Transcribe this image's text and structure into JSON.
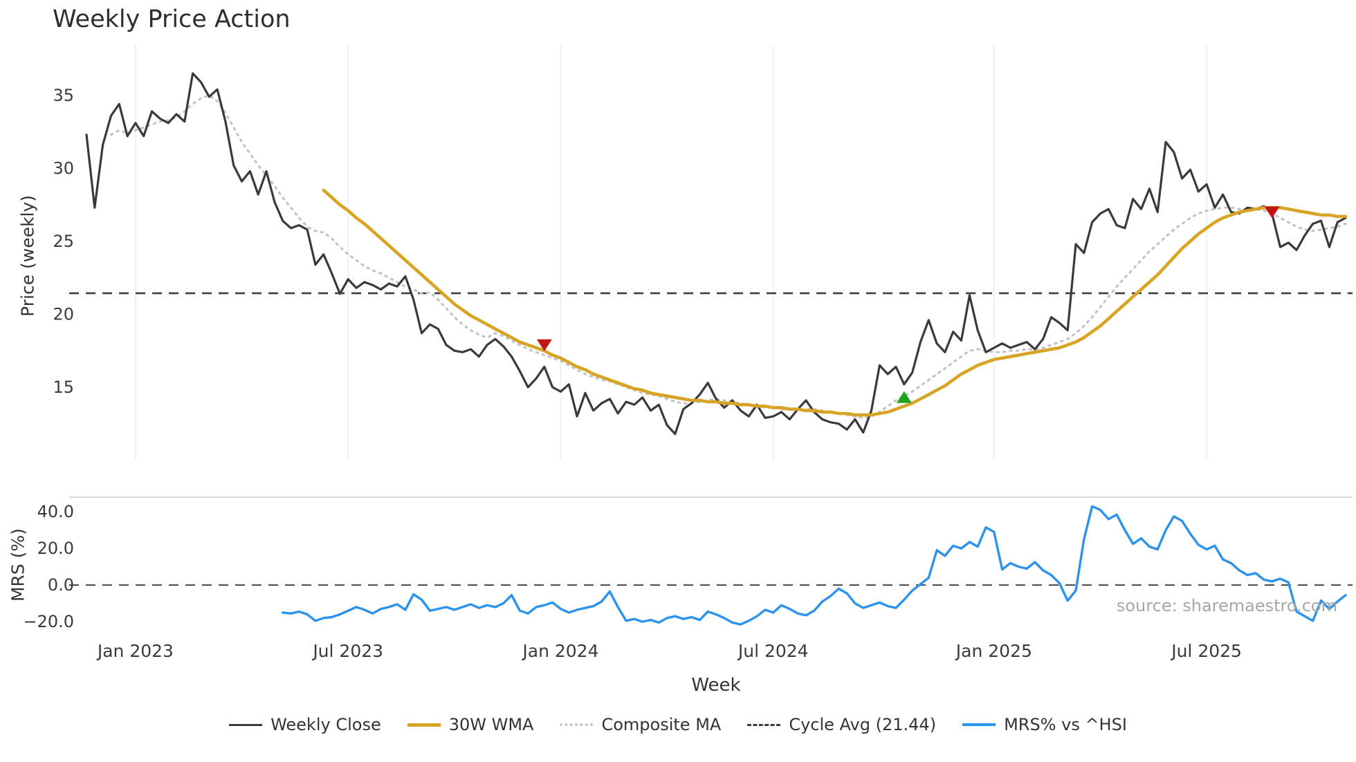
{
  "title": "Weekly Price Action",
  "source": "source: sharemaestro.com",
  "axes": {
    "price_label": "Price (weekly)",
    "mrs_label": "MRS (%)",
    "x_label": "Week"
  },
  "legend": [
    {
      "label": "Weekly Close",
      "color": "#3a3a3a",
      "style": "solid"
    },
    {
      "label": "30W WMA",
      "color": "#d8a425",
      "style": "solid"
    },
    {
      "label": "Composite MA",
      "color": "#c4c4c4",
      "style": "dotted"
    },
    {
      "label": "Cycle Avg (21.44)",
      "color": "#3c3c3c",
      "style": "dashed"
    },
    {
      "label": "MRS% vs ^HSI",
      "color": "#2b93ee",
      "style": "solid"
    }
  ],
  "chart_data": [
    {
      "name": "price-panel",
      "type": "line",
      "ylabel": "Price (weekly)",
      "x_unit": "week-index",
      "n_points": 155,
      "ylim": [
        10.5,
        37.5
      ],
      "yticks": {
        "values": [
          35,
          30,
          25,
          20,
          15
        ],
        "labels": [
          "35",
          "30",
          "25",
          "20",
          "15"
        ]
      },
      "xticks": {
        "indices": [
          6,
          32,
          58,
          84,
          111,
          137
        ],
        "labels": [
          "Jan 2023",
          "Jul 2023",
          "Jan 2024",
          "Jul 2024",
          "Jan 2025",
          "Jul 2025"
        ]
      },
      "cycle_avg": 21.44,
      "grid": "vertical-light",
      "series": [
        {
          "name": "Weekly Close",
          "color": "#3a3a3a",
          "style": "solid",
          "start_index": 0,
          "values": [
            32.3,
            27.3,
            31.6,
            33.6,
            34.4,
            32.2,
            33.1,
            32.2,
            33.9,
            33.4,
            33.1,
            33.7,
            33.2,
            36.5,
            35.9,
            34.9,
            35.4,
            33.2,
            30.2,
            29.1,
            29.8,
            28.2,
            29.8,
            27.7,
            26.4,
            25.9,
            26.1,
            25.8,
            23.4,
            24.1,
            22.8,
            21.4,
            22.4,
            21.8,
            22.2,
            22.0,
            21.7,
            22.1,
            21.9,
            22.6,
            21.0,
            18.7,
            19.3,
            19.0,
            17.9,
            17.5,
            17.4,
            17.6,
            17.1,
            17.9,
            18.3,
            17.8,
            17.1,
            16.1,
            15.0,
            15.6,
            16.4,
            15.0,
            14.7,
            15.2,
            13.0,
            14.6,
            13.4,
            13.9,
            14.2,
            13.2,
            14.0,
            13.8,
            14.3,
            13.4,
            13.8,
            12.4,
            11.8,
            13.5,
            13.9,
            14.5,
            15.3,
            14.2,
            13.6,
            14.1,
            13.4,
            13.0,
            13.8,
            12.9,
            13.0,
            13.3,
            12.8,
            13.5,
            14.1,
            13.3,
            12.8,
            12.6,
            12.5,
            12.1,
            12.8,
            11.9,
            13.4,
            16.5,
            15.9,
            16.4,
            15.2,
            16.0,
            18.1,
            19.6,
            18.0,
            17.4,
            18.8,
            18.2,
            21.3,
            18.9,
            17.4,
            17.7,
            18.0,
            17.7,
            17.9,
            18.1,
            17.6,
            18.3,
            19.8,
            19.4,
            18.9,
            24.8,
            24.2,
            26.3,
            26.9,
            27.2,
            26.1,
            25.9,
            27.9,
            27.2,
            28.6,
            27.0,
            31.8,
            31.1,
            29.3,
            29.9,
            28.4,
            28.9,
            27.3,
            28.2,
            27.0,
            26.9,
            27.3,
            27.2,
            27.4,
            26.9,
            24.6,
            24.9,
            24.4,
            25.4,
            26.2,
            26.4,
            24.6,
            26.3,
            26.6
          ]
        },
        {
          "name": "30W WMA",
          "color": "#d8a425",
          "style": "solid",
          "start_index": 29,
          "values": [
            28.5,
            28.0,
            27.5,
            27.1,
            26.6,
            26.2,
            25.7,
            25.2,
            24.7,
            24.2,
            23.7,
            23.2,
            22.7,
            22.2,
            21.7,
            21.2,
            20.7,
            20.3,
            19.9,
            19.6,
            19.3,
            19.0,
            18.7,
            18.4,
            18.1,
            17.9,
            17.7,
            17.5,
            17.2,
            17.0,
            16.7,
            16.4,
            16.2,
            15.9,
            15.7,
            15.5,
            15.3,
            15.1,
            14.9,
            14.8,
            14.6,
            14.5,
            14.4,
            14.3,
            14.2,
            14.1,
            14.1,
            14.0,
            14.0,
            13.9,
            13.9,
            13.8,
            13.8,
            13.7,
            13.7,
            13.6,
            13.6,
            13.5,
            13.5,
            13.4,
            13.4,
            13.3,
            13.3,
            13.2,
            13.2,
            13.1,
            13.1,
            13.1,
            13.2,
            13.3,
            13.5,
            13.7,
            13.9,
            14.2,
            14.5,
            14.8,
            15.1,
            15.5,
            15.9,
            16.2,
            16.5,
            16.7,
            16.9,
            17.0,
            17.1,
            17.2,
            17.3,
            17.4,
            17.5,
            17.6,
            17.7,
            17.9,
            18.1,
            18.4,
            18.8,
            19.2,
            19.7,
            20.2,
            20.7,
            21.2,
            21.7,
            22.2,
            22.7,
            23.3,
            23.9,
            24.5,
            25.0,
            25.5,
            25.9,
            26.3,
            26.6,
            26.8,
            27.0,
            27.1,
            27.2,
            27.3,
            27.3,
            27.3,
            27.2,
            27.1,
            27.0,
            26.9,
            26.8,
            26.8,
            26.7,
            26.7
          ]
        },
        {
          "name": "Composite MA",
          "color": "#c4c4c4",
          "style": "dotted",
          "start_index": 3,
          "values": [
            32.3,
            32.6,
            32.4,
            32.6,
            32.8,
            33.0,
            33.2,
            33.3,
            33.5,
            33.9,
            34.4,
            34.8,
            35.0,
            34.6,
            33.8,
            32.8,
            31.8,
            31.0,
            30.2,
            29.5,
            28.8,
            28.0,
            27.3,
            26.6,
            26.0,
            25.7,
            25.6,
            25.2,
            24.6,
            24.1,
            23.7,
            23.3,
            23.0,
            22.8,
            22.5,
            22.2,
            21.9,
            21.7,
            21.4,
            21.5,
            21.0,
            20.4,
            19.8,
            19.3,
            18.9,
            18.6,
            18.4,
            18.7,
            18.5,
            18.2,
            17.9,
            17.6,
            17.4,
            17.2,
            17.0,
            16.8,
            16.5,
            16.2,
            15.9,
            15.7,
            15.5,
            15.4,
            15.2,
            15.0,
            14.8,
            14.6,
            14.5,
            14.4,
            14.2,
            14.0,
            13.9,
            13.9,
            14.0,
            14.1,
            14.2,
            14.1,
            14.0,
            13.9,
            13.8,
            13.7,
            13.6,
            13.6,
            13.5,
            13.5,
            13.4,
            13.5,
            13.5,
            13.4,
            13.3,
            13.2,
            13.1,
            13.0,
            12.9,
            13.0,
            13.3,
            13.7,
            14.1,
            14.4,
            14.7,
            15.1,
            15.5,
            15.9,
            16.3,
            16.7,
            17.1,
            17.5,
            17.6,
            17.5,
            17.4,
            17.4,
            17.5,
            17.5,
            17.6,
            17.6,
            17.7,
            17.9,
            18.1,
            18.3,
            18.7,
            19.2,
            19.8,
            20.5,
            21.2,
            21.9,
            22.5,
            23.1,
            23.7,
            24.3,
            24.8,
            25.3,
            25.8,
            26.2,
            26.6,
            26.9,
            27.1,
            27.2,
            27.3,
            27.3,
            27.2,
            27.1,
            27.2,
            27.1,
            26.9,
            26.6,
            26.3,
            26.0,
            25.8,
            25.7,
            25.8,
            25.9,
            26.0,
            26.2
          ]
        }
      ],
      "markers": [
        {
          "name": "sell-marker",
          "shape": "triangle-down",
          "index": 56,
          "value": 17.9,
          "color": "#c21616"
        },
        {
          "name": "buy-marker",
          "shape": "triangle-up",
          "index": 100,
          "value": 14.3,
          "color": "#1ca41c"
        },
        {
          "name": "sell-marker",
          "shape": "triangle-down",
          "index": 145,
          "value": 27.0,
          "color": "#c21616"
        }
      ]
    },
    {
      "name": "mrs-panel",
      "type": "line",
      "ylabel": "MRS (%)",
      "x_unit": "week-index",
      "ylim": [
        -26,
        48
      ],
      "yticks": {
        "values": [
          40,
          20,
          0,
          -20
        ],
        "labels": [
          "40.0",
          "20.0",
          "0.0",
          "−20.0"
        ]
      },
      "zero_line": 0,
      "series": [
        {
          "name": "MRS% vs ^HSI",
          "color": "#2b93ee",
          "style": "solid",
          "start_index": 24,
          "values": [
            -15.0,
            -15.5,
            -14.5,
            -16.0,
            -19.5,
            -18.0,
            -17.5,
            -16.0,
            -14.0,
            -12.0,
            -13.5,
            -15.5,
            -13.0,
            -12.0,
            -10.5,
            -13.5,
            -5.0,
            -8.0,
            -14.0,
            -13.0,
            -12.0,
            -13.5,
            -12.0,
            -10.5,
            -12.5,
            -11.0,
            -12.0,
            -10.0,
            -5.5,
            -14.0,
            -15.5,
            -12.0,
            -11.0,
            -9.5,
            -13.0,
            -15.0,
            -13.5,
            -12.5,
            -11.5,
            -9.0,
            -3.5,
            -12.0,
            -19.5,
            -18.5,
            -20.0,
            -19.0,
            -20.5,
            -18.0,
            -17.0,
            -18.5,
            -17.5,
            -19.0,
            -14.5,
            -16.0,
            -18.0,
            -20.5,
            -21.5,
            -19.5,
            -17.0,
            -13.5,
            -15.0,
            -11.0,
            -13.0,
            -15.5,
            -16.5,
            -14.0,
            -9.0,
            -6.0,
            -2.0,
            -4.5,
            -10.0,
            -12.5,
            -11.0,
            -9.5,
            -11.5,
            -12.5,
            -8.0,
            -3.0,
            0.5,
            4.0,
            19.0,
            16.0,
            21.5,
            20.0,
            23.5,
            21.0,
            31.5,
            29.0,
            8.5,
            12.0,
            10.0,
            9.0,
            12.5,
            8.0,
            5.5,
            1.0,
            -8.5,
            -3.0,
            25.0,
            43.0,
            41.0,
            36.0,
            38.5,
            30.0,
            22.5,
            25.5,
            21.0,
            19.5,
            30.0,
            37.5,
            35.0,
            28.0,
            22.0,
            19.5,
            21.5,
            14.0,
            12.0,
            8.0,
            5.5,
            6.5,
            3.0,
            2.0,
            3.5,
            1.5,
            -14.5,
            -17.0,
            -19.5,
            -8.5,
            -13.0,
            -9.0,
            -5.5
          ]
        }
      ]
    }
  ]
}
